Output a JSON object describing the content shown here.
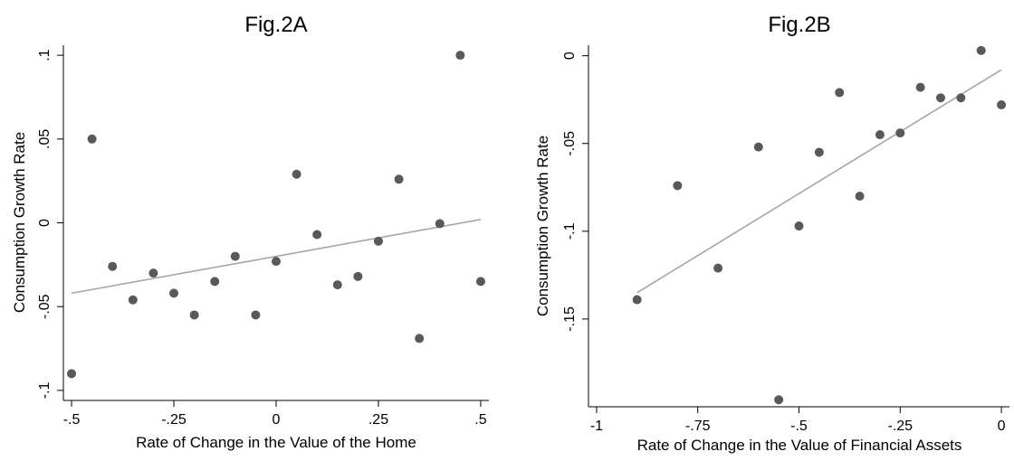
{
  "chart_data": [
    {
      "type": "scatter",
      "title": "Fig.2A",
      "xlabel": "Rate of Change in the Value of the Home",
      "ylabel": "Consumption Growth Rate",
      "xlim": [
        -0.52,
        0.52
      ],
      "ylim": [
        -0.106,
        0.106
      ],
      "xticks": [
        {
          "value": -0.5,
          "label": "-.5"
        },
        {
          "value": -0.25,
          "label": "-.25"
        },
        {
          "value": 0,
          "label": "0"
        },
        {
          "value": 0.25,
          "label": ".25"
        },
        {
          "value": 0.5,
          "label": ".5"
        }
      ],
      "yticks": [
        {
          "value": 0.1,
          "label": ".1"
        },
        {
          "value": 0.05,
          "label": ".05"
        },
        {
          "value": 0,
          "label": "0"
        },
        {
          "value": -0.05,
          "label": "-.05"
        },
        {
          "value": -0.1,
          "label": "-.1"
        }
      ],
      "grid": false,
      "marker_color": "#595959",
      "fit_color": "#a6a6a6",
      "points": [
        {
          "x": -0.5,
          "y": -0.09
        },
        {
          "x": -0.45,
          "y": 0.05
        },
        {
          "x": -0.4,
          "y": -0.026
        },
        {
          "x": -0.35,
          "y": -0.046
        },
        {
          "x": -0.3,
          "y": -0.03
        },
        {
          "x": -0.25,
          "y": -0.042
        },
        {
          "x": -0.2,
          "y": -0.055
        },
        {
          "x": -0.15,
          "y": -0.035
        },
        {
          "x": -0.1,
          "y": -0.02
        },
        {
          "x": -0.05,
          "y": -0.055
        },
        {
          "x": 0,
          "y": -0.023
        },
        {
          "x": 0.05,
          "y": 0.029
        },
        {
          "x": 0.1,
          "y": -0.007
        },
        {
          "x": 0.15,
          "y": -0.037
        },
        {
          "x": 0.2,
          "y": -0.032
        },
        {
          "x": 0.25,
          "y": -0.011
        },
        {
          "x": 0.3,
          "y": 0.026
        },
        {
          "x": 0.35,
          "y": -0.069
        },
        {
          "x": 0.4,
          "y": -0.0005
        },
        {
          "x": 0.45,
          "y": 0.1
        },
        {
          "x": 0.5,
          "y": -0.035
        }
      ],
      "fit_line": {
        "x": [
          -0.5,
          0.5
        ],
        "y": [
          -0.042,
          0.002
        ]
      }
    },
    {
      "type": "scatter",
      "title": "Fig.2B",
      "xlabel": "Rate of Change in the Value of Financial Assets",
      "ylabel": "Consumption Growth Rate",
      "xlim": [
        -1.02,
        0.02
      ],
      "ylim": [
        -0.2,
        0.006
      ],
      "xticks": [
        {
          "value": -1,
          "label": "-1"
        },
        {
          "value": -0.75,
          "label": "-.75"
        },
        {
          "value": -0.5,
          "label": "-.5"
        },
        {
          "value": -0.25,
          "label": "-.25"
        },
        {
          "value": 0,
          "label": "0"
        }
      ],
      "yticks": [
        {
          "value": 0,
          "label": "0"
        },
        {
          "value": -0.05,
          "label": "-.05"
        },
        {
          "value": -0.1,
          "label": "-.1"
        },
        {
          "value": -0.15,
          "label": "-.15"
        }
      ],
      "grid": false,
      "marker_color": "#595959",
      "fit_color": "#a6a6a6",
      "points": [
        {
          "x": -0.9,
          "y": -0.139
        },
        {
          "x": -0.8,
          "y": -0.074
        },
        {
          "x": -0.7,
          "y": -0.121
        },
        {
          "x": -0.6,
          "y": -0.052
        },
        {
          "x": -0.55,
          "y": -0.196
        },
        {
          "x": -0.5,
          "y": -0.097
        },
        {
          "x": -0.45,
          "y": -0.055
        },
        {
          "x": -0.4,
          "y": -0.021
        },
        {
          "x": -0.35,
          "y": -0.08
        },
        {
          "x": -0.3,
          "y": -0.045
        },
        {
          "x": -0.25,
          "y": -0.044
        },
        {
          "x": -0.2,
          "y": -0.018
        },
        {
          "x": -0.15,
          "y": -0.024
        },
        {
          "x": -0.1,
          "y": -0.024
        },
        {
          "x": -0.05,
          "y": 0.003
        },
        {
          "x": 0,
          "y": -0.028
        }
      ],
      "fit_line": {
        "x": [
          -0.9,
          0
        ],
        "y": [
          -0.135,
          -0.008
        ]
      }
    }
  ]
}
